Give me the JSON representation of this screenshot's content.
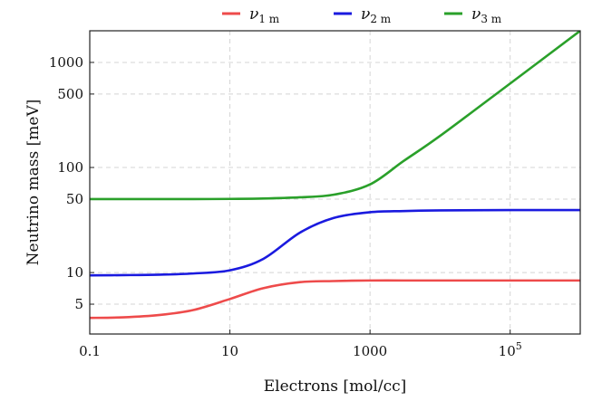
{
  "chart_data": {
    "type": "line",
    "title": "",
    "xlabel": "Electrons [mol/cc]",
    "ylabel": "Neutrino mass [meV]",
    "x_scale": "log",
    "y_scale": "log",
    "xlim": [
      0.1,
      1000000
    ],
    "ylim": [
      2.6,
      2000
    ],
    "grid": true,
    "legend_position": "top-center",
    "x_ticks": [
      {
        "value": 0.1,
        "label": "0.1",
        "sup": ""
      },
      {
        "value": 10,
        "label": "10",
        "sup": ""
      },
      {
        "value": 1000,
        "label": "1000",
        "sup": ""
      },
      {
        "value": 100000,
        "label": "10",
        "sup": "5"
      }
    ],
    "y_ticks": [
      {
        "value": 5,
        "label": "5"
      },
      {
        "value": 10,
        "label": "10"
      },
      {
        "value": 50,
        "label": "50"
      },
      {
        "value": 100,
        "label": "100"
      },
      {
        "value": 500,
        "label": "500"
      },
      {
        "value": 1000,
        "label": "1000"
      }
    ],
    "x": [
      0.1,
      0.3,
      1,
      3,
      10,
      30,
      100,
      300,
      1000,
      3000,
      10000,
      100000,
      1000000
    ],
    "series": [
      {
        "name": "ν1 m",
        "symbol": "ν",
        "subscript": "1 m",
        "color": "#ee4b4b",
        "values": [
          3.7,
          3.75,
          3.95,
          4.4,
          5.6,
          7.1,
          8.1,
          8.3,
          8.4,
          8.4,
          8.4,
          8.4,
          8.4
        ]
      },
      {
        "name": "ν2 m",
        "symbol": "ν",
        "subscript": "2 m",
        "color": "#1a1adf",
        "values": [
          9.4,
          9.45,
          9.55,
          9.8,
          10.5,
          13.5,
          24,
          33,
          37.5,
          38.5,
          39,
          39.3,
          39.3
        ]
      },
      {
        "name": "ν3 m",
        "symbol": "ν",
        "subscript": "3 m",
        "color": "#2aa02a",
        "values": [
          50,
          50,
          50,
          50,
          50.2,
          50.6,
          52,
          55,
          69,
          115,
          200,
          630,
          2000
        ]
      }
    ]
  }
}
